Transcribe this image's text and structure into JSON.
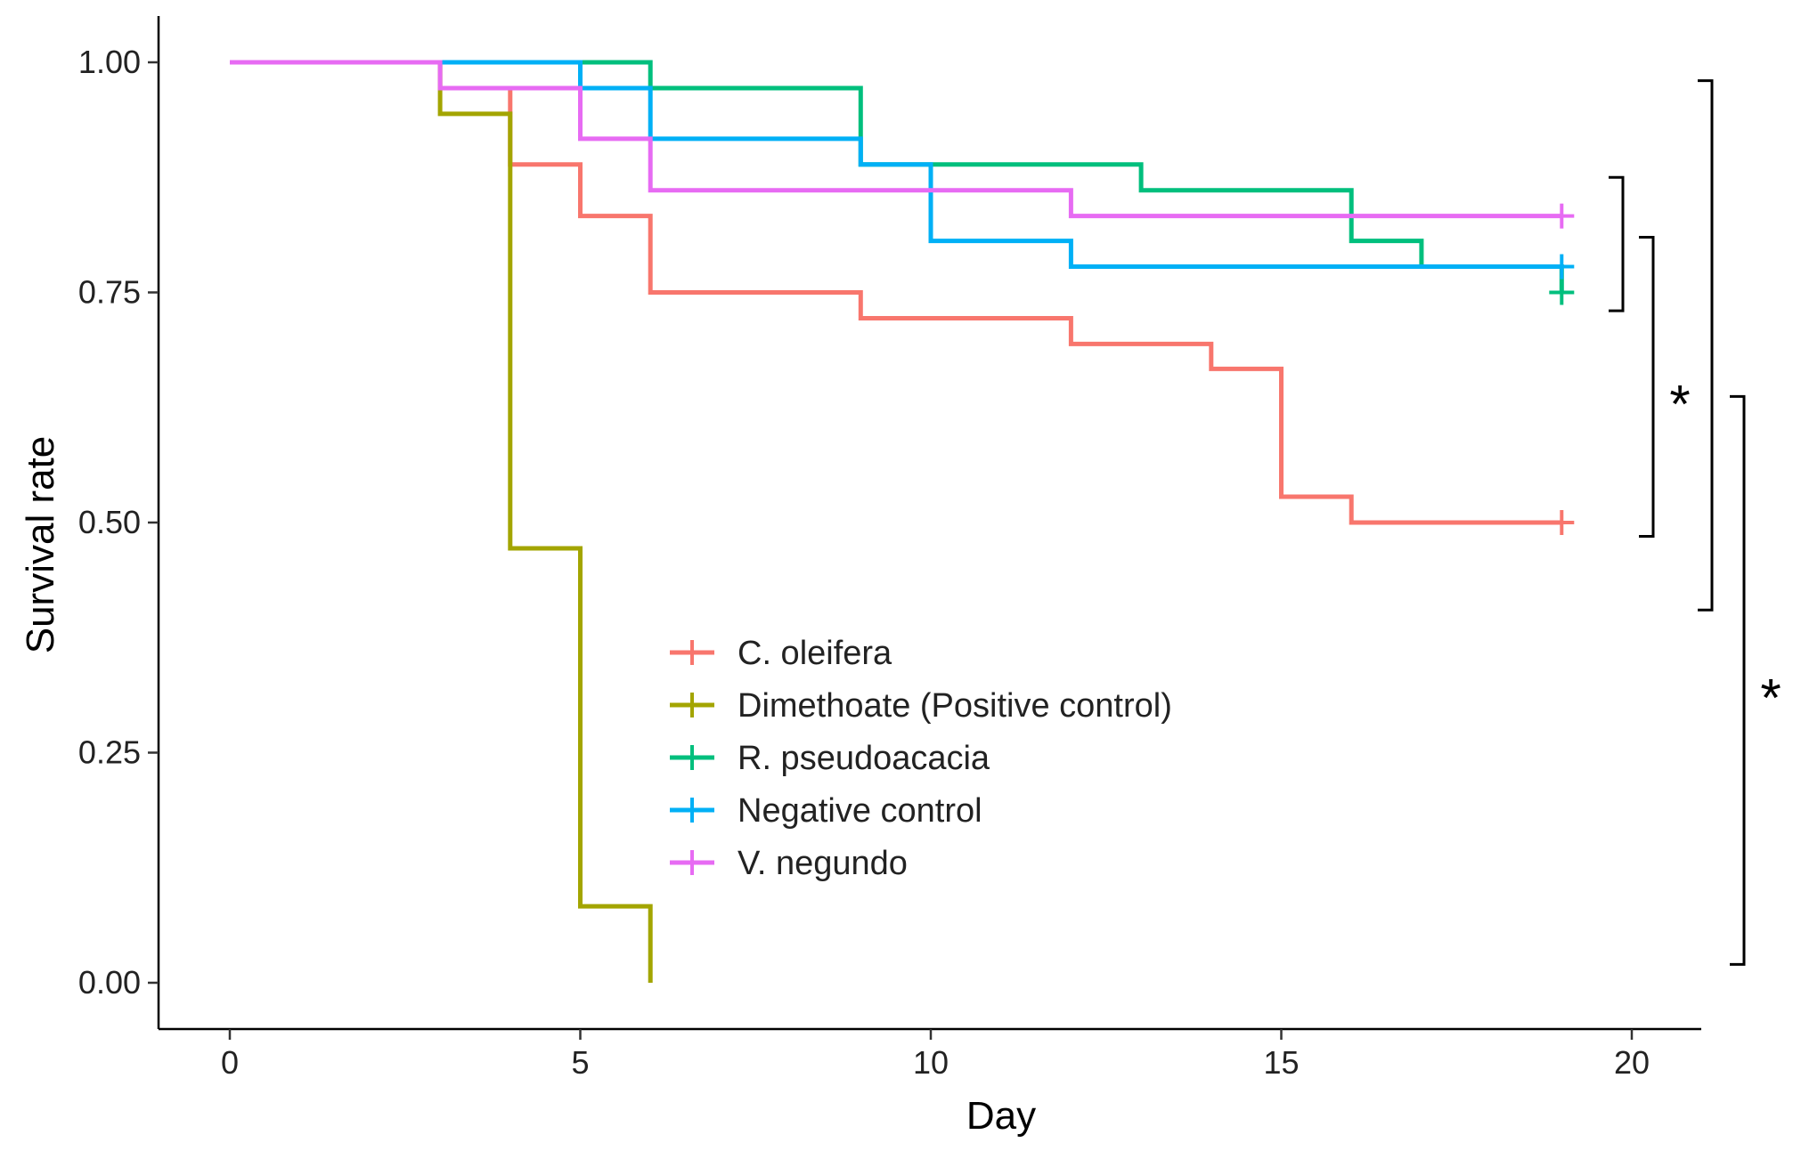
{
  "chart_data": {
    "type": "line",
    "subtype": "step (Kaplan-Meier survival curve)",
    "title": "",
    "xlabel": "Day",
    "ylabel": "Survival rate",
    "xlim": [
      -2,
      21
    ],
    "ylim": [
      -0.05,
      1.05
    ],
    "x_ticks": [
      0,
      5,
      10,
      15,
      20
    ],
    "x_tick_labels": [
      "0",
      "5",
      "10",
      "15",
      "20"
    ],
    "y_ticks": [
      0,
      0.25,
      0.5,
      0.75,
      1.0
    ],
    "y_tick_labels": [
      "0.00",
      "0.25",
      "0.50",
      "0.75",
      "1.00"
    ],
    "grid": false,
    "legend_position": "inside-center",
    "series": [
      {
        "name": "C. oleifera",
        "color": "#F8766D",
        "steps": [
          [
            0,
            1.0
          ],
          [
            3,
            0.972
          ],
          [
            4,
            0.889
          ],
          [
            5,
            0.833
          ],
          [
            6,
            0.75
          ],
          [
            9,
            0.722
          ],
          [
            12,
            0.694
          ],
          [
            14,
            0.667
          ],
          [
            15,
            0.528
          ],
          [
            16,
            0.5
          ]
        ],
        "end_x": 19,
        "censored_at": 19
      },
      {
        "name": "Dimethoate (Positive control)",
        "color": "#A3A500",
        "steps": [
          [
            0,
            1.0
          ],
          [
            3,
            0.944
          ],
          [
            4,
            0.472
          ],
          [
            5,
            0.083
          ],
          [
            6,
            0.0
          ]
        ],
        "end_x": 6,
        "censored_at": null
      },
      {
        "name": "R. pseudoacacia",
        "color": "#00BF7D",
        "steps": [
          [
            0,
            1.0
          ],
          [
            6,
            0.972
          ],
          [
            9,
            0.889
          ],
          [
            13,
            0.861
          ],
          [
            16,
            0.806
          ],
          [
            17,
            0.778
          ],
          [
            19,
            0.75
          ]
        ],
        "end_x": 19,
        "censored_at": 19
      },
      {
        "name": "Negative control",
        "color": "#00B0F6",
        "steps": [
          [
            0,
            1.0
          ],
          [
            5,
            0.972
          ],
          [
            6,
            0.917
          ],
          [
            9,
            0.889
          ],
          [
            10,
            0.806
          ],
          [
            12,
            0.778
          ]
        ],
        "end_x": 19,
        "censored_at": 19
      },
      {
        "name": "V. negundo",
        "color": "#E76BF3",
        "steps": [
          [
            0,
            1.0
          ],
          [
            3,
            0.972
          ],
          [
            5,
            0.917
          ],
          [
            6,
            0.861
          ],
          [
            12,
            0.833
          ]
        ],
        "end_x": 19,
        "censored_at": 19
      }
    ],
    "annotations": [
      {
        "type": "bracket",
        "y_top": 0.875,
        "y_bottom": 0.73,
        "label": ""
      },
      {
        "type": "bracket",
        "y_top": 0.81,
        "y_bottom": 0.485,
        "label": "*"
      },
      {
        "type": "bracket",
        "y_top": 0.98,
        "y_bottom": 0.405,
        "label": ""
      },
      {
        "type": "bracket",
        "y_top": 0.637,
        "y_bottom": 0.02,
        "label": "*"
      }
    ]
  }
}
